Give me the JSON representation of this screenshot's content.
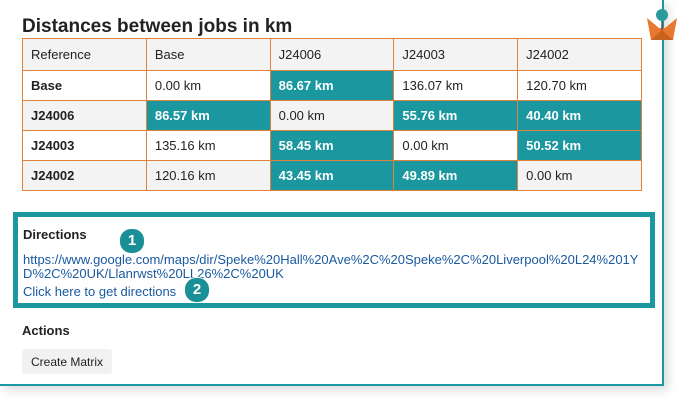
{
  "title": "Distances between jobs in km",
  "table": {
    "header": [
      "Reference",
      "Base",
      "J24006",
      "J24003",
      "J24002"
    ],
    "rows": [
      [
        {
          "text": "Base"
        },
        {
          "text": "0.00 km"
        },
        {
          "text": "86.67 km",
          "highlight": true
        },
        {
          "text": "136.07 km"
        },
        {
          "text": "120.70 km"
        }
      ],
      [
        {
          "text": "J24006"
        },
        {
          "text": "86.57 km",
          "highlight": true
        },
        {
          "text": "0.00 km"
        },
        {
          "text": "55.76 km",
          "highlight": true
        },
        {
          "text": "40.40 km",
          "highlight": true
        }
      ],
      [
        {
          "text": "J24003"
        },
        {
          "text": "135.16 km"
        },
        {
          "text": "58.45 km",
          "highlight": true
        },
        {
          "text": "0.00 km"
        },
        {
          "text": "50.52 km",
          "highlight": true
        }
      ],
      [
        {
          "text": "J24002"
        },
        {
          "text": "120.16 km"
        },
        {
          "text": "43.45 km",
          "highlight": true
        },
        {
          "text": "49.89 km",
          "highlight": true
        },
        {
          "text": "0.00 km"
        }
      ]
    ]
  },
  "directions": {
    "heading": "Directions",
    "url": "https://www.google.com/maps/dir/Speke%20Hall%20Ave%2C%20Speke%2C%20Liverpool%20L24%201YD%2C%20UK/Llanrwst%20LL26%2C%20UK",
    "link": "Click here to get directions",
    "badges": [
      "1",
      "2"
    ]
  },
  "actions": {
    "heading": "Actions",
    "button": "Create Matrix"
  }
}
